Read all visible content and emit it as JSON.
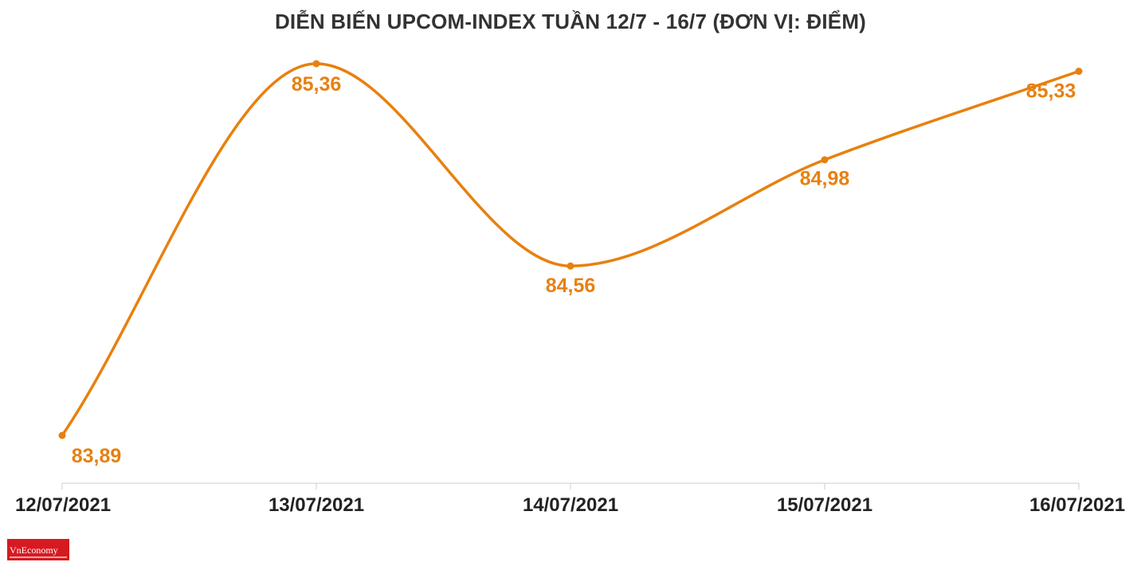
{
  "logo_text": "VnEconomy",
  "chart_data": {
    "type": "line",
    "title": "DIỄN BIẾN UPCOM-INDEX TUẦN 12/7 - 16/7 (ĐƠN VỊ: ĐIỂM)",
    "xlabel": "",
    "ylabel": "",
    "categories": [
      "12/07/2021",
      "13/07/2021",
      "14/07/2021",
      "15/07/2021",
      "16/07/2021"
    ],
    "series": [
      {
        "values": [
          83.89,
          85.36,
          84.56,
          84.98,
          85.33
        ],
        "labels": [
          "83,89",
          "85,36",
          "84,56",
          "84,98",
          "85,33"
        ]
      }
    ],
    "ylim": [
      83.89,
      85.36
    ],
    "grid": false,
    "legend": "none",
    "line_color": "#e8800f",
    "axis_color": "#cccccc",
    "tick_label_color": "#222222"
  }
}
